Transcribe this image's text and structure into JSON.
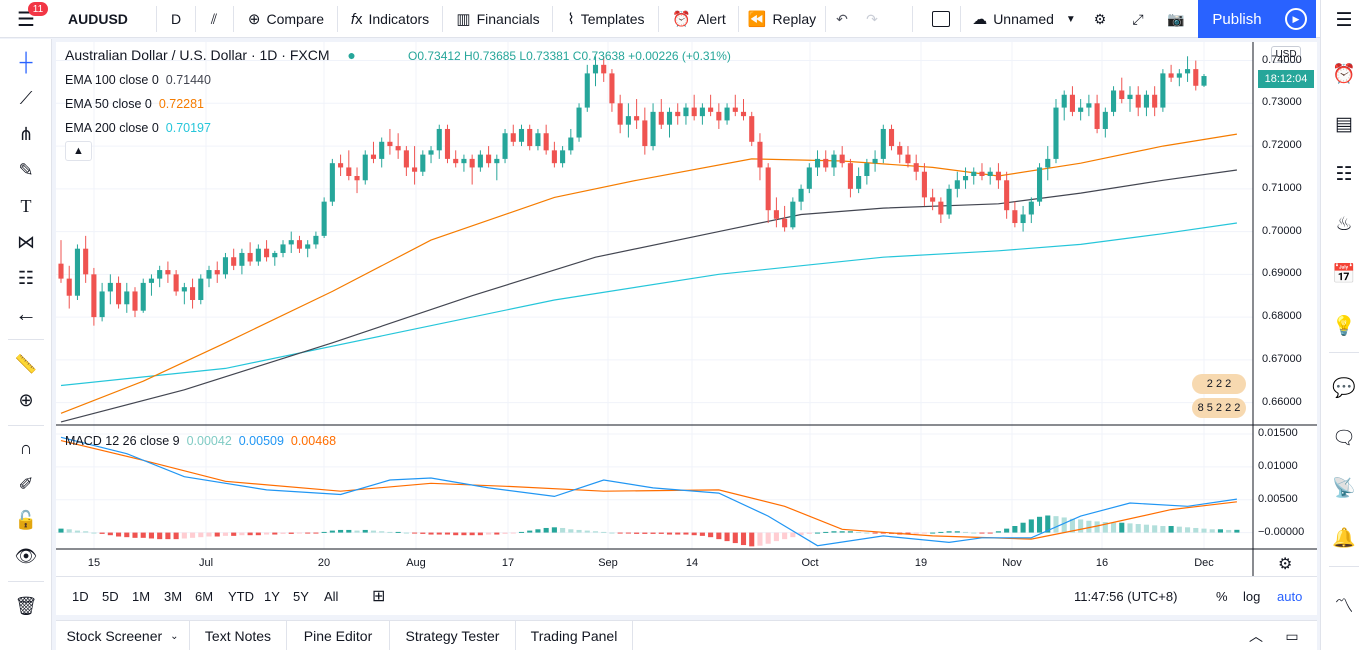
{
  "topbar": {
    "notifications": "11",
    "symbol": "AUDUSD",
    "interval": "D",
    "compare": "Compare",
    "indicators": "Indicators",
    "financials": "Financials",
    "templates": "Templates",
    "alert": "Alert",
    "replay": "Replay",
    "layout_name": "Unnamed",
    "publish": "Publish"
  },
  "legend": {
    "symbol_line": "Australian Dollar / U.S. Dollar · 1D · FXCM",
    "ohlc": "O0.73412 H0.73685 L0.73381 C0.73638 +0.00226 (+0.31%)",
    "ema100_label": "EMA 100 close 0",
    "ema100_value": "0.71440",
    "ema50_label": "EMA 50 close 0",
    "ema50_value": "0.72281",
    "ema200_label": "EMA 200 close 0",
    "ema200_value": "0.70197",
    "macd_label": "MACD 12 26 close 9",
    "macd_hist": "0.00042",
    "macd_line": "0.00509",
    "macd_signal": "0.00468"
  },
  "price_axis": {
    "currency": "USD",
    "countdown": "18:12:04",
    "ticks": [
      "0.74000",
      "0.73000",
      "0.72000",
      "0.71000",
      "0.70000",
      "0.69000",
      "0.68000",
      "0.67000",
      "0.66000"
    ]
  },
  "macd_axis": {
    "ticks": [
      "0.01500",
      "0.01000",
      "0.00500",
      "−0.00000"
    ]
  },
  "time_axis": {
    "ticks": [
      "15",
      "Jul",
      "20",
      "Aug",
      "17",
      "Sep",
      "14",
      "Oct",
      "19",
      "Nov",
      "16",
      "Dec"
    ]
  },
  "events": [
    "2 2 2",
    "8 5 2 2 2"
  ],
  "range_bar": {
    "ranges": [
      "1D",
      "5D",
      "1M",
      "3M",
      "6M",
      "YTD",
      "1Y",
      "5Y",
      "All"
    ],
    "clock": "11:47:56 (UTC+8)",
    "percent": "%",
    "log": "log",
    "auto": "auto"
  },
  "bottom_tabs": [
    "Stock Screener",
    "Text Notes",
    "Pine Editor",
    "Strategy Tester",
    "Trading Panel"
  ],
  "colors": {
    "up": "#26a69a",
    "down": "#ef5350",
    "ema100": "#434651",
    "ema50": "#f57c00",
    "ema200": "#26c6da",
    "macd_line": "#2196f3",
    "signal_line": "#ff6d00",
    "accent": "#2962ff"
  },
  "chart_data": {
    "type": "candlestick",
    "title": "Australian Dollar / U.S. Dollar · 1D · FXCM",
    "ylim": [
      0.655,
      0.742
    ],
    "x_start": "2020-06-10",
    "x_end": "2020-12-02",
    "ohlc": [
      [
        0.6925,
        0.698,
        0.688,
        0.689
      ],
      [
        0.689,
        0.692,
        0.682,
        0.685
      ],
      [
        0.685,
        0.697,
        0.684,
        0.696
      ],
      [
        0.696,
        0.699,
        0.688,
        0.69
      ],
      [
        0.69,
        0.6915,
        0.678,
        0.68
      ],
      [
        0.68,
        0.688,
        0.679,
        0.686
      ],
      [
        0.686,
        0.69,
        0.683,
        0.688
      ],
      [
        0.688,
        0.6895,
        0.682,
        0.683
      ],
      [
        0.683,
        0.688,
        0.681,
        0.686
      ],
      [
        0.686,
        0.687,
        0.68,
        0.6815
      ],
      [
        0.6815,
        0.689,
        0.681,
        0.688
      ],
      [
        0.688,
        0.69,
        0.685,
        0.689
      ],
      [
        0.689,
        0.692,
        0.687,
        0.691
      ],
      [
        0.691,
        0.693,
        0.688,
        0.69
      ],
      [
        0.69,
        0.691,
        0.685,
        0.686
      ],
      [
        0.686,
        0.688,
        0.683,
        0.687
      ],
      [
        0.687,
        0.689,
        0.682,
        0.684
      ],
      [
        0.684,
        0.69,
        0.683,
        0.689
      ],
      [
        0.689,
        0.692,
        0.687,
        0.691
      ],
      [
        0.691,
        0.693,
        0.688,
        0.69
      ],
      [
        0.69,
        0.695,
        0.689,
        0.694
      ],
      [
        0.694,
        0.696,
        0.691,
        0.692
      ],
      [
        0.692,
        0.696,
        0.69,
        0.695
      ],
      [
        0.695,
        0.6975,
        0.692,
        0.693
      ],
      [
        0.693,
        0.697,
        0.692,
        0.696
      ],
      [
        0.696,
        0.698,
        0.693,
        0.694
      ],
      [
        0.694,
        0.6955,
        0.692,
        0.695
      ],
      [
        0.695,
        0.698,
        0.694,
        0.697
      ],
      [
        0.697,
        0.7,
        0.695,
        0.698
      ],
      [
        0.698,
        0.699,
        0.695,
        0.696
      ],
      [
        0.696,
        0.698,
        0.694,
        0.697
      ],
      [
        0.697,
        0.7,
        0.696,
        0.699
      ],
      [
        0.699,
        0.708,
        0.6985,
        0.707
      ],
      [
        0.707,
        0.717,
        0.706,
        0.716
      ],
      [
        0.716,
        0.718,
        0.713,
        0.715
      ],
      [
        0.715,
        0.719,
        0.712,
        0.713
      ],
      [
        0.713,
        0.715,
        0.709,
        0.712
      ],
      [
        0.712,
        0.719,
        0.711,
        0.718
      ],
      [
        0.718,
        0.721,
        0.716,
        0.717
      ],
      [
        0.717,
        0.722,
        0.715,
        0.721
      ],
      [
        0.721,
        0.724,
        0.718,
        0.72
      ],
      [
        0.72,
        0.723,
        0.717,
        0.719
      ],
      [
        0.719,
        0.72,
        0.713,
        0.715
      ],
      [
        0.715,
        0.72,
        0.711,
        0.714
      ],
      [
        0.714,
        0.719,
        0.713,
        0.718
      ],
      [
        0.718,
        0.72,
        0.716,
        0.719
      ],
      [
        0.719,
        0.725,
        0.717,
        0.724
      ],
      [
        0.724,
        0.725,
        0.716,
        0.717
      ],
      [
        0.717,
        0.719,
        0.715,
        0.716
      ],
      [
        0.716,
        0.718,
        0.714,
        0.717
      ],
      [
        0.717,
        0.718,
        0.711,
        0.715
      ],
      [
        0.715,
        0.719,
        0.714,
        0.718
      ],
      [
        0.718,
        0.72,
        0.715,
        0.716
      ],
      [
        0.716,
        0.718,
        0.712,
        0.717
      ],
      [
        0.717,
        0.724,
        0.716,
        0.723
      ],
      [
        0.723,
        0.725,
        0.72,
        0.721
      ],
      [
        0.721,
        0.725,
        0.72,
        0.724
      ],
      [
        0.724,
        0.725,
        0.719,
        0.72
      ],
      [
        0.72,
        0.724,
        0.719,
        0.723
      ],
      [
        0.723,
        0.725,
        0.718,
        0.719
      ],
      [
        0.719,
        0.721,
        0.715,
        0.716
      ],
      [
        0.716,
        0.72,
        0.715,
        0.719
      ],
      [
        0.719,
        0.724,
        0.718,
        0.722
      ],
      [
        0.722,
        0.73,
        0.721,
        0.729
      ],
      [
        0.729,
        0.739,
        0.728,
        0.737
      ],
      [
        0.737,
        0.741,
        0.734,
        0.739
      ],
      [
        0.739,
        0.741,
        0.735,
        0.737
      ],
      [
        0.737,
        0.738,
        0.728,
        0.73
      ],
      [
        0.73,
        0.732,
        0.723,
        0.725
      ],
      [
        0.725,
        0.73,
        0.722,
        0.727
      ],
      [
        0.727,
        0.731,
        0.724,
        0.726
      ],
      [
        0.726,
        0.729,
        0.718,
        0.72
      ],
      [
        0.72,
        0.73,
        0.719,
        0.728
      ],
      [
        0.728,
        0.731,
        0.724,
        0.725
      ],
      [
        0.725,
        0.729,
        0.722,
        0.728
      ],
      [
        0.728,
        0.73,
        0.725,
        0.727
      ],
      [
        0.727,
        0.73,
        0.725,
        0.729
      ],
      [
        0.729,
        0.732,
        0.726,
        0.727
      ],
      [
        0.727,
        0.73,
        0.725,
        0.729
      ],
      [
        0.729,
        0.732,
        0.727,
        0.728
      ],
      [
        0.728,
        0.73,
        0.724,
        0.726
      ],
      [
        0.726,
        0.73,
        0.725,
        0.729
      ],
      [
        0.729,
        0.732,
        0.727,
        0.728
      ],
      [
        0.728,
        0.731,
        0.726,
        0.727
      ],
      [
        0.727,
        0.728,
        0.72,
        0.721
      ],
      [
        0.721,
        0.723,
        0.712,
        0.715
      ],
      [
        0.715,
        0.716,
        0.702,
        0.705
      ],
      [
        0.705,
        0.708,
        0.701,
        0.703
      ],
      [
        0.703,
        0.706,
        0.7,
        0.701
      ],
      [
        0.701,
        0.708,
        0.7005,
        0.707
      ],
      [
        0.707,
        0.711,
        0.705,
        0.71
      ],
      [
        0.71,
        0.716,
        0.709,
        0.715
      ],
      [
        0.715,
        0.719,
        0.713,
        0.717
      ],
      [
        0.717,
        0.719,
        0.714,
        0.715
      ],
      [
        0.715,
        0.719,
        0.713,
        0.718
      ],
      [
        0.718,
        0.72,
        0.715,
        0.716
      ],
      [
        0.716,
        0.717,
        0.708,
        0.71
      ],
      [
        0.71,
        0.715,
        0.709,
        0.713
      ],
      [
        0.713,
        0.717,
        0.711,
        0.716
      ],
      [
        0.716,
        0.719,
        0.714,
        0.717
      ],
      [
        0.717,
        0.725,
        0.716,
        0.724
      ],
      [
        0.724,
        0.725,
        0.719,
        0.72
      ],
      [
        0.72,
        0.721,
        0.716,
        0.718
      ],
      [
        0.718,
        0.72,
        0.715,
        0.716
      ],
      [
        0.716,
        0.718,
        0.712,
        0.714
      ],
      [
        0.714,
        0.716,
        0.706,
        0.708
      ],
      [
        0.708,
        0.71,
        0.705,
        0.707
      ],
      [
        0.707,
        0.708,
        0.702,
        0.704
      ],
      [
        0.704,
        0.711,
        0.703,
        0.71
      ],
      [
        0.71,
        0.714,
        0.708,
        0.712
      ],
      [
        0.712,
        0.715,
        0.71,
        0.713
      ],
      [
        0.713,
        0.715,
        0.711,
        0.714
      ],
      [
        0.714,
        0.716,
        0.712,
        0.713
      ],
      [
        0.713,
        0.715,
        0.711,
        0.714
      ],
      [
        0.714,
        0.716,
        0.71,
        0.712
      ],
      [
        0.712,
        0.714,
        0.703,
        0.705
      ],
      [
        0.705,
        0.707,
        0.701,
        0.702
      ],
      [
        0.702,
        0.706,
        0.7,
        0.704
      ],
      [
        0.704,
        0.708,
        0.702,
        0.707
      ],
      [
        0.707,
        0.716,
        0.706,
        0.715
      ],
      [
        0.715,
        0.72,
        0.712,
        0.717
      ],
      [
        0.717,
        0.731,
        0.716,
        0.729
      ],
      [
        0.729,
        0.733,
        0.726,
        0.732
      ],
      [
        0.732,
        0.734,
        0.727,
        0.728
      ],
      [
        0.728,
        0.731,
        0.726,
        0.729
      ],
      [
        0.729,
        0.732,
        0.727,
        0.73
      ],
      [
        0.73,
        0.732,
        0.723,
        0.724
      ],
      [
        0.724,
        0.729,
        0.722,
        0.728
      ],
      [
        0.728,
        0.734,
        0.727,
        0.733
      ],
      [
        0.733,
        0.736,
        0.73,
        0.731
      ],
      [
        0.731,
        0.734,
        0.728,
        0.732
      ],
      [
        0.732,
        0.734,
        0.727,
        0.729
      ],
      [
        0.729,
        0.733,
        0.727,
        0.732
      ],
      [
        0.732,
        0.734,
        0.727,
        0.729
      ],
      [
        0.729,
        0.738,
        0.728,
        0.737
      ],
      [
        0.737,
        0.739,
        0.735,
        0.736
      ],
      [
        0.736,
        0.738,
        0.734,
        0.737
      ],
      [
        0.737,
        0.741,
        0.735,
        0.738
      ],
      [
        0.738,
        0.74,
        0.733,
        0.7341
      ],
      [
        0.73412,
        0.73685,
        0.73381,
        0.73638
      ]
    ],
    "ema50": [
      [
        0,
        0.6575
      ],
      [
        10,
        0.665
      ],
      [
        20,
        0.674
      ],
      [
        33,
        0.686
      ],
      [
        45,
        0.698
      ],
      [
        60,
        0.708
      ],
      [
        70,
        0.712
      ],
      [
        84,
        0.717
      ],
      [
        95,
        0.7165
      ],
      [
        106,
        0.715
      ],
      [
        114,
        0.713
      ],
      [
        124,
        0.716
      ],
      [
        134,
        0.72
      ],
      [
        143,
        0.7228
      ]
    ],
    "ema100": [
      [
        0,
        0.6555
      ],
      [
        15,
        0.663
      ],
      [
        33,
        0.674
      ],
      [
        50,
        0.685
      ],
      [
        65,
        0.694
      ],
      [
        80,
        0.7
      ],
      [
        90,
        0.704
      ],
      [
        100,
        0.7055
      ],
      [
        114,
        0.7065
      ],
      [
        124,
        0.709
      ],
      [
        134,
        0.712
      ],
      [
        143,
        0.7144
      ]
    ],
    "ema200": [
      [
        0,
        0.664
      ],
      [
        20,
        0.668
      ],
      [
        40,
        0.676
      ],
      [
        60,
        0.684
      ],
      [
        80,
        0.69
      ],
      [
        100,
        0.694
      ],
      [
        114,
        0.6955
      ],
      [
        124,
        0.697
      ],
      [
        134,
        0.6995
      ],
      [
        143,
        0.702
      ]
    ],
    "macd": {
      "ylim": [
        -0.0025,
        0.015
      ],
      "macd_line": [
        [
          0,
          0.0145
        ],
        [
          8,
          0.012
        ],
        [
          15,
          0.0085
        ],
        [
          25,
          0.0065
        ],
        [
          34,
          0.0058
        ],
        [
          40,
          0.008
        ],
        [
          45,
          0.0083
        ],
        [
          52,
          0.0068
        ],
        [
          60,
          0.0055
        ],
        [
          66,
          0.008
        ],
        [
          72,
          0.0068
        ],
        [
          80,
          0.006
        ],
        [
          86,
          0.0025
        ],
        [
          92,
          -0.002
        ],
        [
          100,
          -0.0005
        ],
        [
          108,
          -0.0015
        ],
        [
          112,
          -0.0008
        ],
        [
          118,
          -0.0008
        ],
        [
          124,
          0.0025
        ],
        [
          130,
          0.0045
        ],
        [
          137,
          0.004
        ],
        [
          143,
          0.00509
        ]
      ],
      "signal_line": [
        [
          0,
          0.014
        ],
        [
          10,
          0.011
        ],
        [
          20,
          0.0078
        ],
        [
          34,
          0.0063
        ],
        [
          45,
          0.0075
        ],
        [
          55,
          0.007
        ],
        [
          66,
          0.0063
        ],
        [
          80,
          0.0065
        ],
        [
          88,
          0.004
        ],
        [
          95,
          0.0005
        ],
        [
          106,
          -0.0005
        ],
        [
          118,
          -0.001
        ],
        [
          126,
          0.001
        ],
        [
          135,
          0.0035
        ],
        [
          143,
          0.00468
        ]
      ],
      "histogram": [
        0.0006,
        0.0005,
        0.0003,
        0.0002,
        0.0,
        -0.0002,
        -0.0004,
        -0.0006,
        -0.0007,
        -0.0008,
        -0.0008,
        -0.0009,
        -0.001,
        -0.001,
        -0.001,
        -0.0009,
        -0.0008,
        -0.0007,
        -0.0006,
        -0.0006,
        -0.0005,
        -0.0005,
        -0.0004,
        -0.0004,
        -0.0004,
        -0.0003,
        -0.0003,
        -0.0002,
        -0.0002,
        -0.0001,
        -0.0001,
        -0.0001,
        0.0001,
        0.0003,
        0.0004,
        0.0004,
        0.0003,
        0.0004,
        0.0003,
        0.0002,
        0.0001,
        0.0001,
        0.0,
        -0.0001,
        -0.0002,
        -0.0003,
        -0.0003,
        -0.0003,
        -0.0004,
        -0.0004,
        -0.0004,
        -0.0004,
        -0.0003,
        -0.0003,
        -0.0002,
        -0.0001,
        0.0001,
        0.0003,
        0.0005,
        0.0007,
        0.0008,
        0.0007,
        0.0005,
        0.0004,
        0.0003,
        0.0002,
        0.0001,
        0.0,
        -0.0001,
        -0.0001,
        -0.0002,
        -0.0002,
        -0.0002,
        -0.0002,
        -0.0003,
        -0.0003,
        -0.0003,
        -0.0004,
        -0.0005,
        -0.0007,
        -0.001,
        -0.0013,
        -0.0016,
        -0.0019,
        -0.0021,
        -0.002,
        -0.0017,
        -0.0013,
        -0.001,
        -0.0007,
        -0.0004,
        -0.0002,
        0.0,
        0.0001,
        0.0002,
        0.0002,
        0.0002,
        0.0001,
        0.0,
        -0.0001,
        -0.0001,
        -0.0002,
        -0.0003,
        -0.0003,
        -0.0002,
        -0.0001,
        0.0,
        0.0001,
        0.0002,
        0.0002,
        0.0001,
        0.0,
        -0.0001,
        -0.0001,
        0.0002,
        0.0006,
        0.001,
        0.0015,
        0.002,
        0.0024,
        0.0026,
        0.0025,
        0.0023,
        0.0021,
        0.002,
        0.0018,
        0.0017,
        0.0016,
        0.0015,
        0.0015,
        0.0014,
        0.0013,
        0.0012,
        0.0011,
        0.001,
        0.001,
        0.0009,
        0.0008,
        0.0007,
        0.0006,
        0.0005,
        0.0005,
        0.0004,
        0.00042
      ]
    }
  }
}
